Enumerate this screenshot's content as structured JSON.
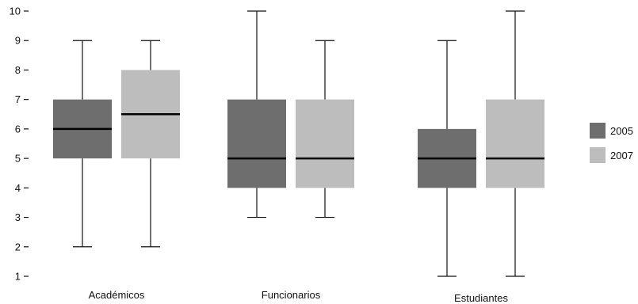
{
  "chart_data": {
    "type": "box",
    "title": "",
    "xlabel": "",
    "ylabel": "",
    "ylim": [
      1,
      10
    ],
    "yticks": [
      1,
      2,
      3,
      4,
      5,
      6,
      7,
      8,
      9,
      10
    ],
    "categories": [
      "Académicos",
      "Funcionarios",
      "Estudiantes"
    ],
    "legend_position": "right",
    "series": [
      {
        "name": "2005",
        "color": "#6e6e6e",
        "boxes": [
          {
            "category": "Académicos",
            "min": 2,
            "q1": 5,
            "median": 6,
            "q3": 7,
            "max": 9
          },
          {
            "category": "Funcionarios",
            "min": 3,
            "q1": 4,
            "median": 5,
            "q3": 7,
            "max": 10
          },
          {
            "category": "Estudiantes",
            "min": 1,
            "q1": 4,
            "median": 5,
            "q3": 6,
            "max": 9
          }
        ]
      },
      {
        "name": "2007",
        "color": "#bdbdbe",
        "boxes": [
          {
            "category": "Académicos",
            "min": 2,
            "q1": 5,
            "median": 6.5,
            "q3": 8,
            "max": 9
          },
          {
            "category": "Funcionarios",
            "min": 3,
            "q1": 4,
            "median": 5,
            "q3": 7,
            "max": 9
          },
          {
            "category": "Estudiantes",
            "min": 1,
            "q1": 4,
            "median": 5,
            "q3": 7,
            "max": 10
          }
        ]
      }
    ]
  }
}
